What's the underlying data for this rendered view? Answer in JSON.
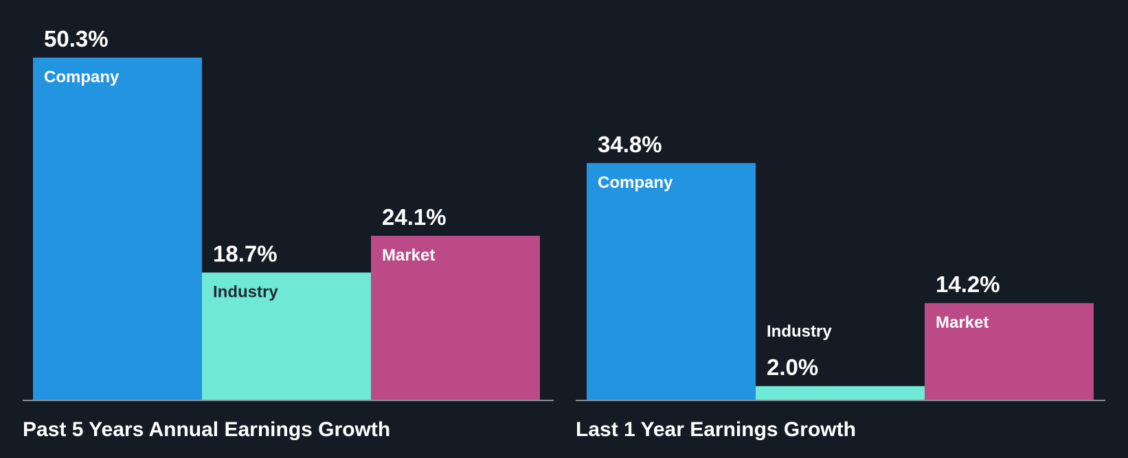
{
  "colors": {
    "background": "#151b24",
    "company": "#2394e0",
    "industry": "#6fe8d6",
    "market": "#bb4a86",
    "baseline": "#8a9099",
    "text_light": "#ffffff",
    "text_dark": "#1f2a33"
  },
  "chart_data": [
    {
      "type": "bar",
      "title": "Past 5 Years Annual Earnings Growth",
      "categories": [
        "Company",
        "Industry",
        "Market"
      ],
      "values": [
        50.3,
        18.7,
        24.1
      ],
      "value_labels": [
        "50.3%",
        "18.7%",
        "24.1%"
      ],
      "unit": "%",
      "xlabel": "",
      "ylabel": "",
      "ylim": [
        0,
        50.3
      ],
      "grid": false,
      "legend": "none"
    },
    {
      "type": "bar",
      "title": "Last 1 Year Earnings Growth",
      "categories": [
        "Company",
        "Industry",
        "Market"
      ],
      "values": [
        34.8,
        2.0,
        14.2
      ],
      "value_labels": [
        "34.8%",
        "2.0%",
        "14.2%"
      ],
      "unit": "%",
      "xlabel": "",
      "ylabel": "",
      "ylim": [
        0,
        50.3
      ],
      "grid": false,
      "legend": "none"
    }
  ]
}
